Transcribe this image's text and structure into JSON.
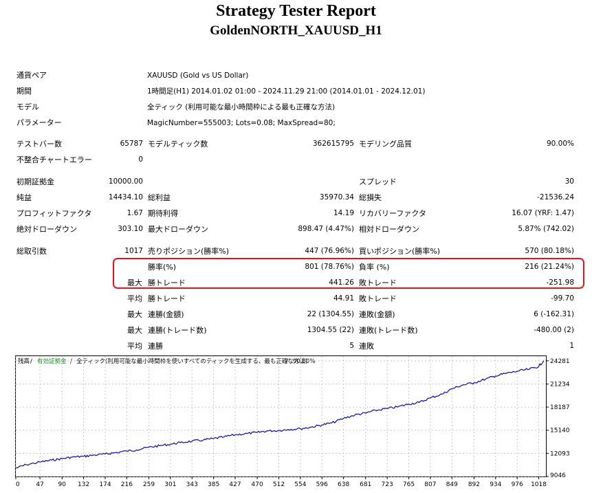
{
  "report": {
    "title": "Strategy Tester Report",
    "subtitle": "GoldenNORTH_XAUUSD_H1"
  },
  "info": {
    "pair_label": "通貨ペア",
    "pair_value": "XAUUSD (Gold vs US Dollar)",
    "period_label": "期間",
    "period_value": "1時間足(H1) 2014.01.02 01:00 - 2024.11.29 21:00 (2014.01.01 - 2024.12.01)",
    "model_label": "モデル",
    "model_value": "全ティック (利用可能な最小時間枠による最も正確な方法)",
    "params_label": "パラメーター",
    "params_value": "MagicNumber=555003; Lots=0.08; MaxSpread=80;"
  },
  "stats": {
    "bars_label": "テストバー数",
    "bars_value": "65787",
    "ticks_label": "モデルティック数",
    "ticks_value": "362615795",
    "quality_label": "モデリング品質",
    "quality_value": "90.00%",
    "errors_label": "不整合チャートエラー",
    "errors_value": "0",
    "deposit_label": "初期証拠金",
    "deposit_value": "10000.00",
    "spread_label": "スプレッド",
    "spread_value": "30",
    "net_label": "純益",
    "net_value": "14434.10",
    "gross_profit_label": "総利益",
    "gross_profit_value": "35970.34",
    "gross_loss_label": "総損失",
    "gross_loss_value": "-21536.24",
    "pf_label": "プロフィットファクタ",
    "pf_value": "1.67",
    "expected_label": "期待利得",
    "expected_value": "14.19",
    "recovery_label": "リカバリーファクタ",
    "recovery_value": "16.07 (YRF: 1.47)",
    "abs_dd_label": "絶対ドローダウン",
    "abs_dd_value": "303.10",
    "max_dd_label": "最大ドローダウン",
    "max_dd_value": "898.47 (4.47%)",
    "rel_dd_label": "相対ドローダウン",
    "rel_dd_value": "5.87% (742.02)",
    "trades_label": "総取引数",
    "trades_value": "1017",
    "short_label": "売りポジション(勝率%)",
    "short_value": "447 (76.96%)",
    "long_label": "買いポジション(勝率%)",
    "long_value": "570 (80.18%)",
    "win_rate_label": "勝率(%)",
    "win_rate_value": "801 (78.76%)",
    "loss_rate_label": "負率 (%)",
    "loss_rate_value": "216 (21.24%)",
    "max_prefix": "最大",
    "largest_win_label": "勝トレード",
    "largest_win_value": "441.26",
    "largest_loss_label": "敗トレード",
    "largest_loss_value": "-251.98",
    "avg_prefix": "平均",
    "avg_win_label": "勝トレード",
    "avg_win_value": "44.91",
    "avg_loss_label": "敗トレード",
    "avg_loss_value": "-99.70",
    "max_prefix2": "最大",
    "cons_wins_money_label": "連勝(金額)",
    "cons_wins_money_value": "22 (1304.55)",
    "cons_losses_money_label": "連敗(金額)",
    "cons_losses_money_value": "6 (-162.31)",
    "max_prefix3": "最大",
    "cons_profit_label": "連勝(トレード数)",
    "cons_profit_value": "1304.55 (22)",
    "cons_loss_label": "連敗(トレード数)",
    "cons_loss_value": "-480.00 (2)",
    "avg_prefix2": "平均",
    "avg_cons_wins_label": "連勝",
    "avg_cons_wins_value": "5",
    "avg_cons_losses_label": "連敗",
    "avg_cons_losses_value": "1"
  },
  "chart_legend": {
    "balance": "残高",
    "sep1": " / ",
    "equity": "有効証拠金",
    "sep2": " / ",
    "model": "全ティック(利用可能な最小時間枠を使いすべてのティックを生成する、最も正確な方法)",
    "sep3": " / ",
    "quality": "90.00%"
  },
  "colors": {
    "balance_line": "#1a1aa0",
    "equity_legend": "#1a8a1a",
    "highlight_border": "#e0141e",
    "grid": "#c8c8c8"
  },
  "chart_data": {
    "type": "line",
    "title": "",
    "xlabel": "",
    "ylabel": "",
    "x_ticks": [
      0,
      47,
      90,
      132,
      174,
      216,
      259,
      301,
      343,
      385,
      427,
      470,
      512,
      554,
      596,
      638,
      681,
      723,
      765,
      807,
      849,
      892,
      934,
      976,
      1018
    ],
    "y_ticks": [
      9046,
      12093,
      15140,
      18187,
      21234,
      24281
    ],
    "xlim": [
      0,
      1032
    ],
    "ylim": [
      9046,
      24900
    ],
    "grid": true,
    "series": [
      {
        "x": [
          0,
          20,
          47,
          70,
          90,
          110,
          132,
          150,
          174,
          190,
          216,
          235,
          259,
          280,
          301,
          320,
          343,
          365,
          385,
          405,
          427,
          450,
          470,
          490,
          512,
          530,
          554,
          575,
          596,
          615,
          638,
          660,
          681,
          700,
          723,
          745,
          765,
          785,
          807,
          830,
          849,
          870,
          892,
          915,
          934,
          955,
          976,
          1000,
          1018,
          1028
        ],
        "y": [
          10150,
          10600,
          10950,
          11200,
          11400,
          11600,
          11700,
          11850,
          12000,
          12150,
          12400,
          12550,
          12900,
          13100,
          13300,
          13500,
          13700,
          13850,
          14050,
          14250,
          14550,
          14700,
          14850,
          15050,
          15100,
          15250,
          15350,
          15550,
          15850,
          16100,
          16700,
          17150,
          17400,
          17750,
          18000,
          18250,
          18600,
          18800,
          19400,
          19900,
          20600,
          21100,
          21400,
          21900,
          22300,
          22650,
          22900,
          23200,
          23550,
          24300
        ]
      }
    ]
  }
}
